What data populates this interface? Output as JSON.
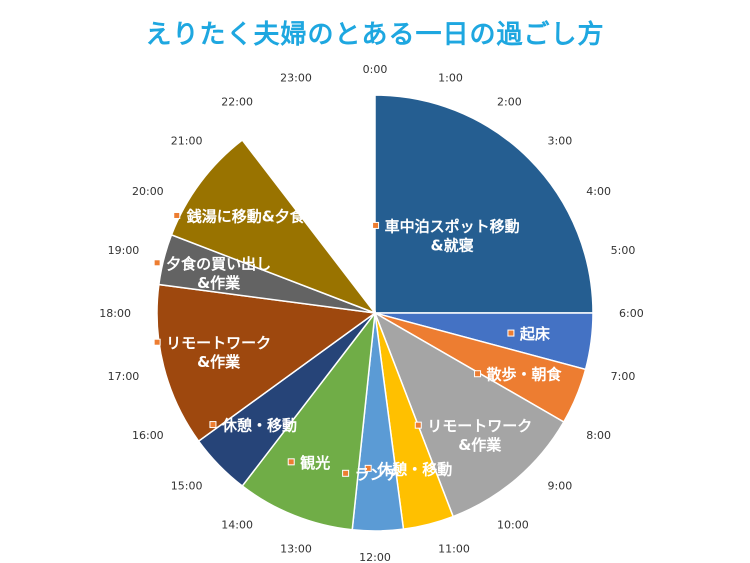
{
  "chart_data": {
    "type": "pie",
    "title": "えりたく夫婦のとある一日の過ごし方",
    "hour_labels": [
      "0:00",
      "1:00",
      "2:00",
      "3:00",
      "4:00",
      "5:00",
      "6:00",
      "7:00",
      "8:00",
      "9:00",
      "10:00",
      "11:00",
      "12:00",
      "13:00",
      "14:00",
      "15:00",
      "16:00",
      "17:00",
      "18:00",
      "19:00",
      "20:00",
      "21:00",
      "22:00",
      "23:00"
    ],
    "slices": [
      {
        "label_lines": [
          "車中泊スポット移動",
          "&就寝"
        ],
        "start": 0.0,
        "end": 6.0,
        "value": 6.0,
        "color": "#255e91"
      },
      {
        "label_lines": [
          "起床"
        ],
        "start": 6.0,
        "end": 7.0,
        "value": 1.0,
        "color": "#4472c4"
      },
      {
        "label_lines": [
          "散歩・朝食"
        ],
        "start": 7.0,
        "end": 8.0,
        "value": 1.0,
        "color": "#ed7d31"
      },
      {
        "label_lines": [
          "リモートワーク",
          "&作業"
        ],
        "start": 8.0,
        "end": 10.6,
        "value": 2.6,
        "color": "#a5a5a5"
      },
      {
        "label_lines": [
          "休憩・移動"
        ],
        "start": 10.6,
        "end": 11.5,
        "value": 0.9,
        "color": "#ffc000"
      },
      {
        "label_lines": [
          "ランチ"
        ],
        "start": 11.5,
        "end": 12.4,
        "value": 0.9,
        "color": "#5b9bd5"
      },
      {
        "label_lines": [
          "観光"
        ],
        "start": 12.4,
        "end": 14.5,
        "value": 2.1,
        "color": "#70ad47"
      },
      {
        "label_lines": [
          "休憩・移動"
        ],
        "start": 14.5,
        "end": 15.6,
        "value": 1.1,
        "color": "#264478"
      },
      {
        "label_lines": [
          "リモートワーク",
          "&作業"
        ],
        "start": 15.6,
        "end": 18.5,
        "value": 2.9,
        "color": "#9e480e"
      },
      {
        "label_lines": [
          "夕食の買い出し",
          "&作業"
        ],
        "start": 18.5,
        "end": 19.4,
        "value": 0.9,
        "color": "#636363"
      },
      {
        "label_lines": [
          "銭湯に移動&夕食"
        ],
        "start": 19.4,
        "end": 21.5,
        "value": 2.1,
        "color": "#997300"
      }
    ]
  }
}
